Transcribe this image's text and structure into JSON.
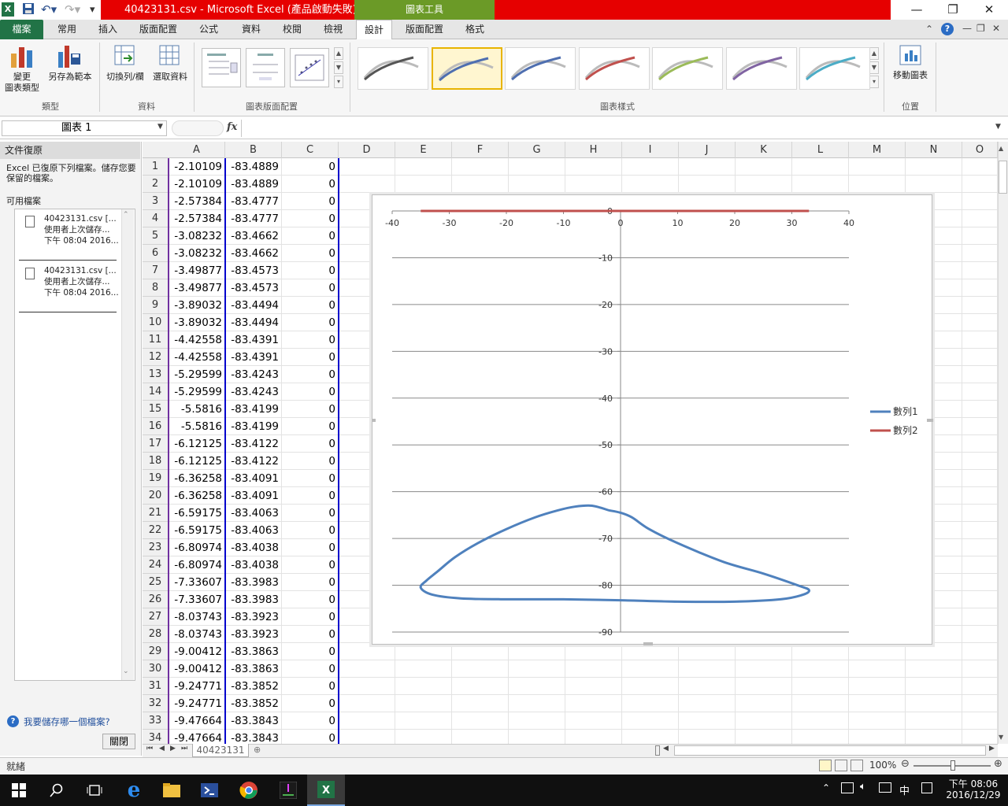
{
  "window": {
    "title": "40423131.csv - Microsoft Excel (產品啟動失敗)",
    "chart_tools_label": "圖表工具"
  },
  "tabs": [
    "檔案",
    "常用",
    "插入",
    "版面配置",
    "公式",
    "資料",
    "校閱",
    "檢視",
    "設計",
    "版面配置",
    "格式"
  ],
  "ribbon": {
    "change_type_line1": "變更",
    "change_type_line2": "圖表類型",
    "save_template": "另存為範本",
    "switch_row_col": "切換列/欄",
    "select_data": "選取資料",
    "move_chart": "移動圖表",
    "groups": {
      "type": "類型",
      "data": "資料",
      "layouts": "圖表版面配置",
      "styles": "圖表樣式",
      "location": "位置"
    },
    "accent": "#217346"
  },
  "formula_bar": {
    "name_box": "圖表 1",
    "fx": "fx",
    "formula": ""
  },
  "recovery_pane": {
    "title": "文件復原",
    "desc": "Excel 已復原下列檔案。儲存您要保留的檔案。",
    "available": "可用檔案",
    "items": [
      {
        "name": "40423131.csv  [...",
        "line2": "使用者上次儲存...",
        "line3": "下午 08:04 2016..."
      },
      {
        "name": "40423131.csv  [...",
        "line2": "使用者上次儲存...",
        "line3": "下午 08:04 2016..."
      }
    ],
    "help_link": "我要儲存哪一個檔案?",
    "close": "關閉"
  },
  "grid": {
    "columns": [
      "A",
      "B",
      "C",
      "D",
      "E",
      "F",
      "G",
      "H",
      "I",
      "J",
      "K",
      "L",
      "M",
      "N",
      "O"
    ],
    "rows": [
      [
        "-2.10109",
        "-83.4889",
        "0"
      ],
      [
        "-2.10109",
        "-83.4889",
        "0"
      ],
      [
        "-2.57384",
        "-83.4777",
        "0"
      ],
      [
        "-2.57384",
        "-83.4777",
        "0"
      ],
      [
        "-3.08232",
        "-83.4662",
        "0"
      ],
      [
        "-3.08232",
        "-83.4662",
        "0"
      ],
      [
        "-3.49877",
        "-83.4573",
        "0"
      ],
      [
        "-3.49877",
        "-83.4573",
        "0"
      ],
      [
        "-3.89032",
        "-83.4494",
        "0"
      ],
      [
        "-3.89032",
        "-83.4494",
        "0"
      ],
      [
        "-4.42558",
        "-83.4391",
        "0"
      ],
      [
        "-4.42558",
        "-83.4391",
        "0"
      ],
      [
        "-5.29599",
        "-83.4243",
        "0"
      ],
      [
        "-5.29599",
        "-83.4243",
        "0"
      ],
      [
        "-5.5816",
        "-83.4199",
        "0"
      ],
      [
        "-5.5816",
        "-83.4199",
        "0"
      ],
      [
        "-6.12125",
        "-83.4122",
        "0"
      ],
      [
        "-6.12125",
        "-83.4122",
        "0"
      ],
      [
        "-6.36258",
        "-83.4091",
        "0"
      ],
      [
        "-6.36258",
        "-83.4091",
        "0"
      ],
      [
        "-6.59175",
        "-83.4063",
        "0"
      ],
      [
        "-6.59175",
        "-83.4063",
        "0"
      ],
      [
        "-6.80974",
        "-83.4038",
        "0"
      ],
      [
        "-6.80974",
        "-83.4038",
        "0"
      ],
      [
        "-7.33607",
        "-83.3983",
        "0"
      ],
      [
        "-7.33607",
        "-83.3983",
        "0"
      ],
      [
        "-8.03743",
        "-83.3923",
        "0"
      ],
      [
        "-8.03743",
        "-83.3923",
        "0"
      ],
      [
        "-9.00412",
        "-83.3863",
        "0"
      ],
      [
        "-9.00412",
        "-83.3863",
        "0"
      ],
      [
        "-9.24771",
        "-83.3852",
        "0"
      ],
      [
        "-9.24771",
        "-83.3852",
        "0"
      ],
      [
        "-9.47664",
        "-83.3843",
        "0"
      ],
      [
        "-9.47664",
        "-83.3843",
        "0"
      ]
    ]
  },
  "chart_data": {
    "type": "scatter",
    "xlim": [
      -40,
      40
    ],
    "ylim": [
      -90,
      0
    ],
    "x_ticks": [
      -40,
      -30,
      -20,
      -10,
      0,
      10,
      20,
      30,
      40
    ],
    "y_ticks": [
      0,
      -10,
      -20,
      -30,
      -40,
      -50,
      -60,
      -70,
      -80,
      -90
    ],
    "grid": true,
    "legend_position": "right",
    "series": [
      {
        "name": "數列1",
        "color": "#4f81bd",
        "x": [
          -2,
          -5,
          -8,
          -11,
          -15,
          -20,
          -25,
          -29,
          -32,
          -34,
          -35,
          -33,
          -28,
          -20,
          -10,
          0,
          10,
          20,
          28,
          32,
          33,
          31,
          25,
          18,
          10,
          5,
          2,
          0,
          -2
        ],
        "y": [
          -64,
          -63,
          -63.2,
          -64,
          -65.5,
          -68,
          -71,
          -74,
          -77,
          -79,
          -80.5,
          -82,
          -82.8,
          -83,
          -83,
          -83.2,
          -83.5,
          -83.5,
          -83,
          -82,
          -81,
          -80,
          -77.5,
          -75,
          -71,
          -68,
          -65.5,
          -64.5,
          -64
        ]
      },
      {
        "name": "數列2",
        "color": "#c0504d",
        "x": [
          -35,
          -20,
          0,
          20,
          33
        ],
        "y": [
          0,
          0,
          0,
          0,
          0
        ]
      }
    ]
  },
  "sheet_tabs": [
    "40423131"
  ],
  "status": {
    "ready": "就緒",
    "zoom": "100%"
  },
  "taskbar": {
    "time": "下午 08:06",
    "date": "2016/12/29",
    "ime": "中"
  }
}
